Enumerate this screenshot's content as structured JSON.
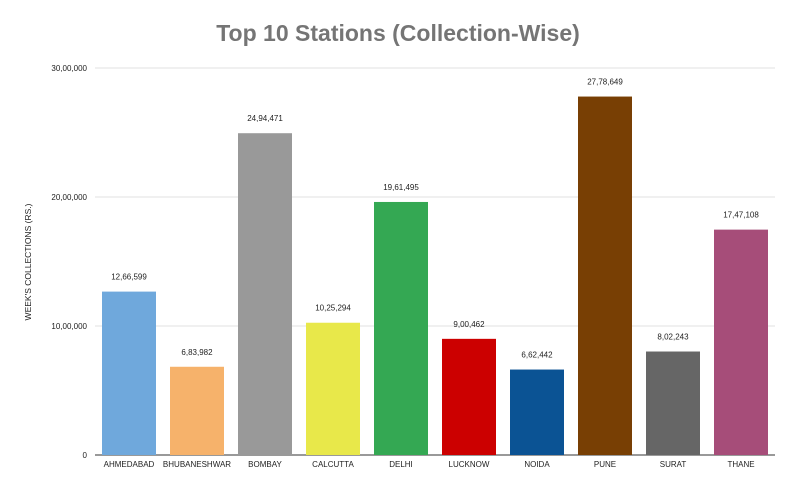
{
  "chart_data": {
    "type": "bar",
    "title": "Top 10 Stations (Collection-Wise)",
    "xlabel": "",
    "ylabel": "WEEK'S COLLECTIONS (RS.)",
    "ylim": [
      0,
      3000000
    ],
    "grid": true,
    "legend": "none",
    "y_ticks": [
      {
        "value": 0,
        "label": "0"
      },
      {
        "value": 1000000,
        "label": "10,00,000"
      },
      {
        "value": 2000000,
        "label": "20,00,000"
      },
      {
        "value": 3000000,
        "label": "30,00,000"
      }
    ],
    "categories": [
      "AHMEDABAD",
      "BHUBANESHWAR",
      "BOMBAY",
      "CALCUTTA",
      "DELHI",
      "LUCKNOW",
      "NOIDA",
      "PUNE",
      "SURAT",
      "THANE"
    ],
    "values": [
      1266599,
      683982,
      2494471,
      1025294,
      1961495,
      900462,
      662442,
      2778649,
      802243,
      1747108
    ],
    "data_labels": [
      "12,66,599",
      "6,83,982",
      "24,94,471",
      "10,25,294",
      "19,61,495",
      "9,00,462",
      "6,62,442",
      "27,78,649",
      "8,02,243",
      "17,47,108"
    ],
    "colors": [
      "#6fa8dc",
      "#f6b26b",
      "#999999",
      "#e8e84a",
      "#34a853",
      "#cc0000",
      "#0b5394",
      "#783f04",
      "#666666",
      "#a64d79"
    ]
  }
}
